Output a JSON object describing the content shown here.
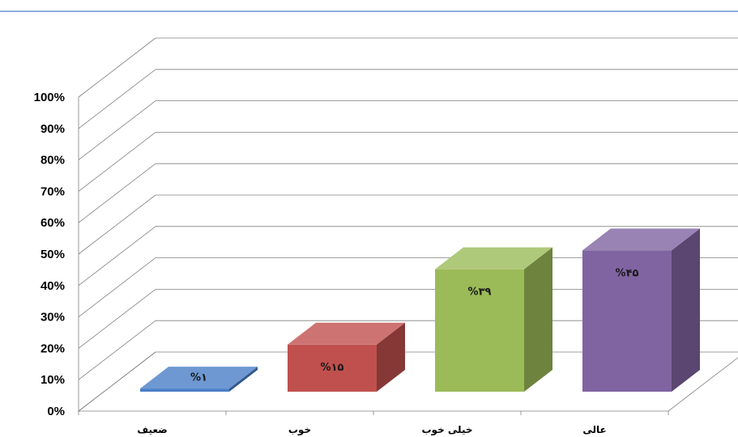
{
  "chart_data": {
    "type": "bar",
    "categories": [
      "ضعیف",
      "خوب",
      "خیلی خوب",
      "عالی"
    ],
    "values": [
      1,
      15,
      39,
      45
    ],
    "data_labels": [
      "%۱",
      "%۱۵",
      "%۳۹",
      "%۴۵"
    ],
    "colors": [
      "#4a7ec7",
      "#c0504d",
      "#9bbb59",
      "#8064a2"
    ],
    "ylim": [
      0,
      100
    ],
    "ytick_labels": [
      "0%",
      "10%",
      "20%",
      "30%",
      "40%",
      "50%",
      "60%",
      "70%",
      "80%",
      "90%",
      "100%"
    ],
    "grid": true,
    "style": "3d-column"
  }
}
